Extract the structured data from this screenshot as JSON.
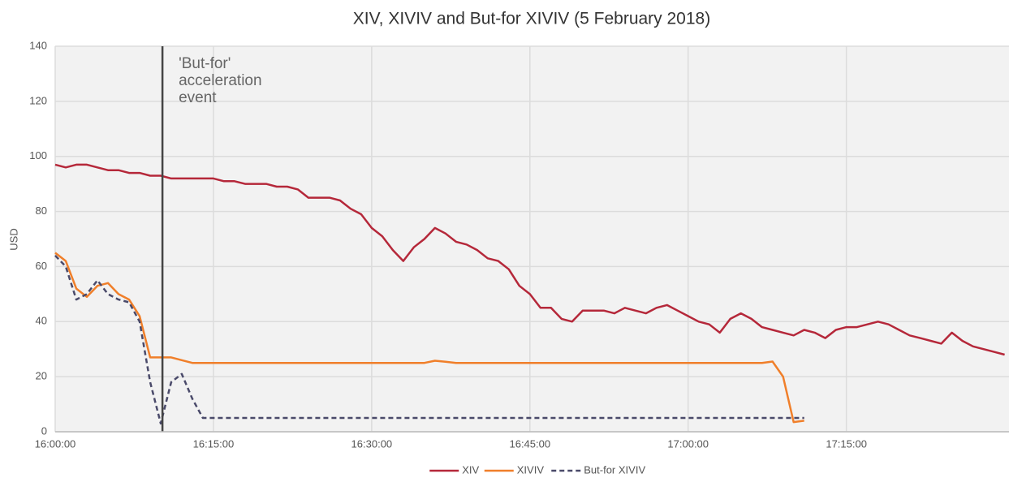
{
  "chart_data": {
    "type": "line",
    "title": "XIV, XIVIV and But-for XIVIV (5 February 2018)",
    "y_label": "USD",
    "x": [
      "16:00:00",
      "16:01:00",
      "16:02:00",
      "16:03:00",
      "16:04:00",
      "16:05:00",
      "16:06:00",
      "16:07:00",
      "16:08:00",
      "16:09:00",
      "16:10:00",
      "16:11:00",
      "16:12:00",
      "16:13:00",
      "16:14:00",
      "16:15:00",
      "16:16:00",
      "16:17:00",
      "16:18:00",
      "16:19:00",
      "16:20:00",
      "16:21:00",
      "16:22:00",
      "16:23:00",
      "16:24:00",
      "16:25:00",
      "16:26:00",
      "16:27:00",
      "16:28:00",
      "16:29:00",
      "16:30:00",
      "16:31:00",
      "16:32:00",
      "16:33:00",
      "16:34:00",
      "16:35:00",
      "16:36:00",
      "16:37:00",
      "16:38:00",
      "16:39:00",
      "16:40:00",
      "16:41:00",
      "16:42:00",
      "16:43:00",
      "16:44:00",
      "16:45:00",
      "16:46:00",
      "16:47:00",
      "16:48:00",
      "16:49:00",
      "16:50:00",
      "16:51:00",
      "16:52:00",
      "16:53:00",
      "16:54:00",
      "16:55:00",
      "16:56:00",
      "16:57:00",
      "16:58:00",
      "16:59:00",
      "17:00:00",
      "17:01:00",
      "17:02:00",
      "17:03:00",
      "17:04:00",
      "17:05:00",
      "17:06:00",
      "17:07:00",
      "17:08:00",
      "17:09:00",
      "17:10:00",
      "17:11:00",
      "17:12:00",
      "17:13:00",
      "17:14:00",
      "17:15:00",
      "17:16:00",
      "17:17:00",
      "17:18:00",
      "17:19:00",
      "17:20:00",
      "17:21:00",
      "17:22:00",
      "17:23:00",
      "17:24:00",
      "17:25:00",
      "17:26:00",
      "17:27:00",
      "17:28:00",
      "17:29:00",
      "17:30:00"
    ],
    "series": [
      {
        "name": "XIV",
        "color": "#b5283a",
        "dashed": false,
        "values": [
          97,
          96,
          97,
          97,
          96,
          95,
          95,
          94,
          94,
          93,
          93,
          92,
          92,
          92,
          92,
          92,
          91,
          91,
          90,
          90,
          90,
          89,
          89,
          88,
          85,
          85,
          85,
          84,
          81,
          79,
          74,
          71,
          66,
          62,
          67,
          70,
          74,
          72,
          69,
          68,
          66,
          63,
          62,
          59,
          53,
          50,
          45,
          45,
          41,
          40,
          44,
          44,
          44,
          43,
          45,
          44,
          43,
          45,
          46,
          44,
          42,
          40,
          39,
          36,
          41,
          43,
          41,
          38,
          37,
          36,
          35,
          37,
          36,
          34,
          37,
          38,
          38,
          39,
          40,
          39,
          37,
          35,
          34,
          33,
          32,
          36,
          33,
          31,
          30,
          29,
          28
        ]
      },
      {
        "name": "XIVIV",
        "color": "#f07f2a",
        "dashed": false,
        "values": [
          65,
          62,
          52,
          49,
          53,
          54,
          50,
          48,
          42,
          27,
          27,
          27,
          26,
          25,
          25,
          25,
          25,
          25,
          25,
          25,
          25,
          25,
          25,
          25,
          25,
          25,
          25,
          25,
          25,
          25,
          25,
          25,
          25,
          25,
          25,
          25,
          25.8,
          25.4,
          25,
          25,
          25,
          25,
          25,
          25,
          25,
          25,
          25,
          25,
          25,
          25,
          25,
          25,
          25,
          25,
          25,
          25,
          25,
          25,
          25,
          25,
          25,
          25,
          25,
          25,
          25,
          25,
          25,
          25,
          25.5,
          20,
          3.5,
          4,
          null,
          null,
          null,
          null,
          null,
          null,
          null,
          null,
          null,
          null,
          null,
          null,
          null,
          null,
          null,
          null,
          null,
          null,
          null
        ]
      },
      {
        "name": "But-for XIVIV",
        "color": "#4a4a6a",
        "dashed": true,
        "values": [
          64,
          60,
          48,
          50,
          55,
          50,
          48,
          47,
          40,
          18,
          3,
          18,
          21,
          12,
          5,
          5,
          5,
          5,
          5,
          5,
          5,
          5,
          5,
          5,
          5,
          5,
          5,
          5,
          5,
          5,
          5,
          5,
          5,
          5,
          5,
          5,
          5,
          5,
          5,
          5,
          5,
          5,
          5,
          5,
          5,
          5,
          5,
          5,
          5,
          5,
          5,
          5,
          5,
          5,
          5,
          5,
          5,
          5,
          5,
          5,
          5,
          5,
          5,
          5,
          5,
          5,
          5,
          5,
          5,
          5,
          5,
          5,
          null,
          null,
          null,
          null,
          null,
          null,
          null,
          null,
          null,
          null,
          null,
          null,
          null,
          null,
          null,
          null,
          null,
          null,
          null
        ]
      }
    ],
    "xlim": [
      "16:00:00",
      "17:30:25"
    ],
    "xticks": [
      "16:00:00",
      "16:15:00",
      "16:30:00",
      "16:45:00",
      "17:00:00",
      "17:15:00"
    ],
    "ylim": [
      0,
      140
    ],
    "yticks": [
      0,
      20,
      40,
      60,
      80,
      100,
      120,
      140
    ],
    "grid": true,
    "legend": "bottom",
    "annotation": {
      "x": "16:10:10",
      "text": [
        "'But-for'",
        "acceleration",
        "event"
      ]
    }
  }
}
